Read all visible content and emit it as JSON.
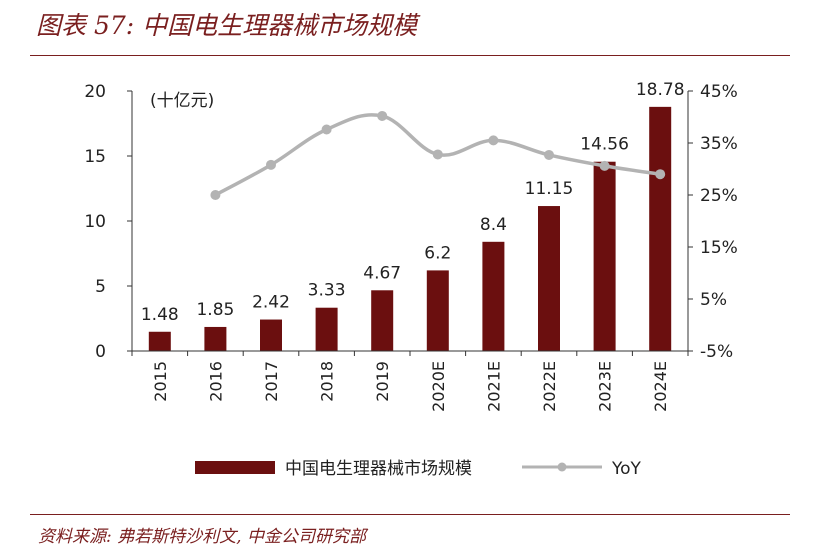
{
  "figure": {
    "title": "图表 57:  中国电生理器械市场规模",
    "source": "资料来源:  弗若斯特沙利文,  中金公司研究部"
  },
  "colors": {
    "bar": "#6b0f0f",
    "line": "#b3b3b3",
    "accent": "#7a1f1f",
    "axis": "#333333"
  },
  "chart_data": {
    "type": "bar",
    "categories": [
      "2015",
      "2016",
      "2017",
      "2018",
      "2019",
      "2020E",
      "2021E",
      "2022E",
      "2023E",
      "2024E"
    ],
    "series": [
      {
        "name": "中国电生理器械市场规模",
        "type": "bar",
        "axis": "left",
        "values": [
          1.48,
          1.85,
          2.42,
          3.33,
          4.67,
          6.2,
          8.4,
          11.15,
          14.56,
          18.78
        ],
        "labels": [
          "1.48",
          "1.85",
          "2.42",
          "3.33",
          "4.67",
          "6.2",
          "8.4",
          "11.15",
          "14.56",
          "18.78"
        ]
      },
      {
        "name": "YoY",
        "type": "line",
        "axis": "right",
        "values": [
          null,
          25.0,
          30.8,
          37.6,
          40.2,
          32.8,
          35.5,
          32.7,
          30.6,
          29.0
        ]
      }
    ],
    "y_left": {
      "min": 0,
      "max": 20,
      "ticks": [
        "0",
        "5",
        "10",
        "15",
        "20"
      ],
      "unit": "(十亿元)"
    },
    "y_right": {
      "min": -5,
      "max": 45,
      "ticks": [
        "-5%",
        "5%",
        "15%",
        "25%",
        "35%",
        "45%"
      ]
    },
    "legend": {
      "position": "bottom",
      "bar_label": "中国电生理器械市场规模",
      "line_label": "YoY"
    }
  }
}
